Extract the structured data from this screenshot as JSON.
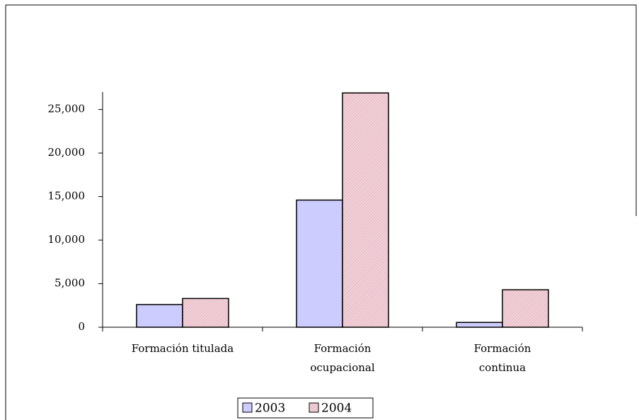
{
  "chart_data": {
    "type": "bar",
    "categories": [
      "Formación titulada",
      "Formación ocupacional",
      "Formación continua"
    ],
    "series": [
      {
        "name": "2003",
        "color": "#ccccff",
        "values": [
          2600,
          14600,
          550
        ]
      },
      {
        "name": "2004",
        "color": "#f2d0d8",
        "values": [
          3300,
          26900,
          4300
        ]
      }
    ],
    "ylim": [
      0,
      27000
    ],
    "yticks": [
      0,
      {
        "value": 5000,
        "label": "5,000"
      },
      {
        "value": 10000,
        "label": "10,000"
      },
      {
        "value": 15000,
        "label": "15,000"
      },
      {
        "value": 20000,
        "label": "20,000"
      },
      {
        "value": 25000,
        "label": "25,000"
      }
    ],
    "legend": "bottom"
  }
}
